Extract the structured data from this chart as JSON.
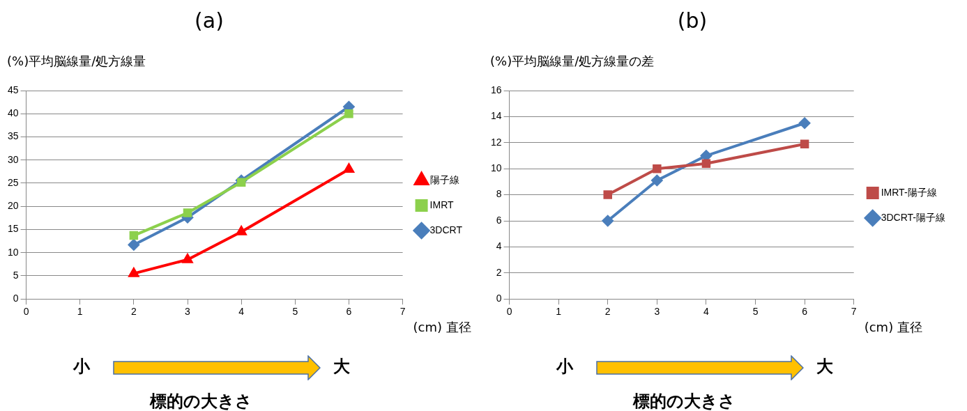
{
  "chart_data": [
    {
      "type": "line",
      "title": "(a)",
      "ylabel": "(%)平均脳線量/処方線量",
      "xlabel": "(cm) 直径",
      "x": [
        2,
        3,
        4,
        6
      ],
      "xlim": [
        0,
        7
      ],
      "xticks": [
        0,
        1,
        2,
        3,
        4,
        5,
        6,
        7
      ],
      "ylim": [
        0,
        45
      ],
      "yticks": [
        0,
        5,
        10,
        15,
        20,
        25,
        30,
        35,
        40,
        45
      ],
      "grid": "y",
      "legend": "right",
      "series": [
        {
          "name": "3DCRT",
          "color": "#4a7ebb",
          "marker": "diamond",
          "values": [
            11.7,
            17.6,
            25.6,
            41.5
          ]
        },
        {
          "name": "IMRT",
          "color": "#8cd04c",
          "marker": "square",
          "values": [
            13.7,
            18.6,
            25.2,
            40.0
          ]
        },
        {
          "name": "陽子線",
          "color": "#ff0000",
          "marker": "triangle",
          "values": [
            5.5,
            8.5,
            14.5,
            28.0
          ]
        }
      ],
      "annotations": [
        "小",
        "大",
        "標的の大きさ"
      ]
    },
    {
      "type": "line",
      "title": "(b)",
      "ylabel": "(%)平均脳線量/処方線量の差",
      "xlabel": "(cm) 直径",
      "x": [
        2,
        3,
        4,
        6
      ],
      "xlim": [
        0,
        7
      ],
      "xticks": [
        0,
        1,
        2,
        3,
        4,
        5,
        6,
        7
      ],
      "ylim": [
        0,
        16
      ],
      "yticks": [
        0,
        2,
        4,
        6,
        8,
        10,
        12,
        14,
        16
      ],
      "grid": "y",
      "legend": "right",
      "series": [
        {
          "name": "3DCRT-陽子線",
          "color": "#4a7ebb",
          "marker": "diamond",
          "values": [
            6.0,
            9.1,
            11.0,
            13.5
          ]
        },
        {
          "name": "IMRT-陽子線",
          "color": "#be4b48",
          "marker": "square",
          "values": [
            8.0,
            10.0,
            10.4,
            11.9
          ]
        }
      ],
      "annotations": [
        "小",
        "大",
        "標的の大きさ"
      ]
    }
  ]
}
